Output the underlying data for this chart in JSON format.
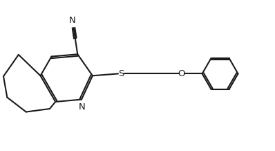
{
  "bg_color": "#ffffff",
  "line_color": "#1a1a1a",
  "line_width": 1.5,
  "figsize": [
    3.98,
    2.18
  ],
  "dpi": 100,
  "xlim": [
    -0.5,
    10.5
  ],
  "ylim": [
    0.5,
    6.0
  ],
  "atom_labels": {
    "N": "N",
    "S": "S",
    "O": "O",
    "CN_N": "N"
  },
  "font_size": 9.5
}
